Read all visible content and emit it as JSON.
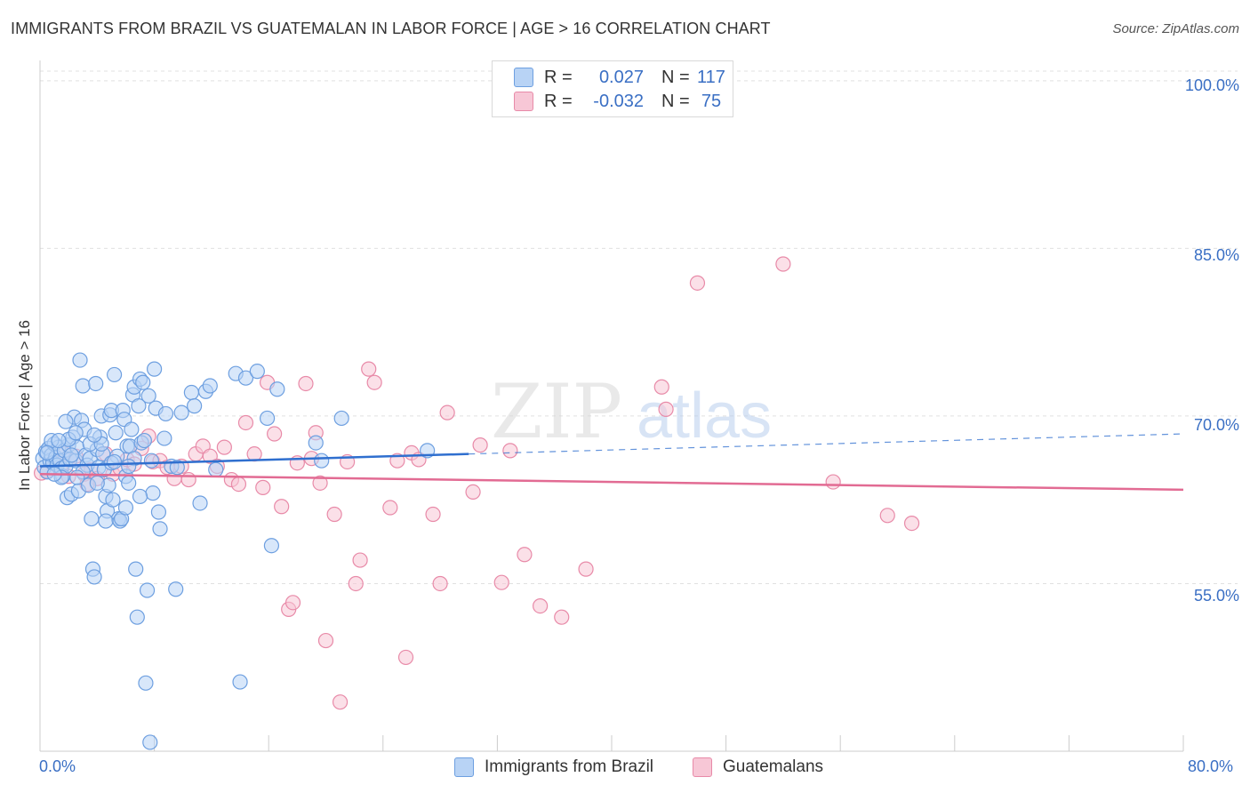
{
  "header": {
    "title": "IMMIGRANTS FROM BRAZIL VS GUATEMALAN IN LABOR FORCE | AGE > 16 CORRELATION CHART",
    "source": "Source: ZipAtlas.com"
  },
  "legend": {
    "series": [
      {
        "r_label": "R =",
        "r_value": "0.027",
        "n_label": "N =",
        "n_value": "117"
      },
      {
        "r_label": "R =",
        "r_value": "-0.032",
        "n_label": "N =",
        "n_value": "75"
      }
    ]
  },
  "watermark": {
    "part1": "ZIP",
    "part2": "atlas"
  },
  "chart_data": {
    "type": "scatter",
    "title": "IMMIGRANTS FROM BRAZIL VS GUATEMALAN IN LABOR FORCE | AGE > 16 CORRELATION CHART",
    "xlabel": "",
    "ylabel": "In Labor Force | Age > 16",
    "xlim": [
      0,
      80
    ],
    "ylim": [
      40,
      101.5
    ],
    "x_tick_labels": {
      "min": "0.0%",
      "max": "80.0%"
    },
    "y_ticks": [
      100,
      85,
      70,
      55
    ],
    "y_tick_labels": [
      "100.0%",
      "85.0%",
      "70.0%",
      "55.0%"
    ],
    "grid": true,
    "colors": {
      "brazil_fill": "#b8d3f5",
      "brazil_stroke": "#6d9fe0",
      "brazil_line": "#2f6fcf",
      "guat_fill": "#f7c7d6",
      "guat_stroke": "#e88aa8",
      "guat_line": "#e26b93",
      "axis_label": "#3a6fc4",
      "grid": "#e0e0e0"
    },
    "series": [
      {
        "name": "Immigrants from Brazil",
        "r": 0.027,
        "n": 117,
        "trend": {
          "x0": 0,
          "y0": 65.5,
          "x1": 30,
          "y1": 66.6,
          "dash_to_x": 80,
          "dash_to_y": 68.4
        },
        "points": [
          [
            0.2,
            66.2
          ],
          [
            0.3,
            65.4
          ],
          [
            0.4,
            66.8
          ],
          [
            0.5,
            65.0
          ],
          [
            0.6,
            67.1
          ],
          [
            0.7,
            66.0
          ],
          [
            0.8,
            66.5
          ],
          [
            0.9,
            65.8
          ],
          [
            1.0,
            67.5
          ],
          [
            1.1,
            66.3
          ],
          [
            1.2,
            65.6
          ],
          [
            1.3,
            67.2
          ],
          [
            1.4,
            66.0
          ],
          [
            1.5,
            65.3
          ],
          [
            1.6,
            64.6
          ],
          [
            1.7,
            66.9
          ],
          [
            1.8,
            65.5
          ],
          [
            1.9,
            62.7
          ],
          [
            2.0,
            67.4
          ],
          [
            2.1,
            66.1
          ],
          [
            2.2,
            63.0
          ],
          [
            2.3,
            68.1
          ],
          [
            2.4,
            69.9
          ],
          [
            2.5,
            66.0
          ],
          [
            2.6,
            67.2
          ],
          [
            2.7,
            63.3
          ],
          [
            2.8,
            75.0
          ],
          [
            2.9,
            69.6
          ],
          [
            3.0,
            72.7
          ],
          [
            3.1,
            68.8
          ],
          [
            3.2,
            66.5
          ],
          [
            3.3,
            65.6
          ],
          [
            3.4,
            63.8
          ],
          [
            3.5,
            66.2
          ],
          [
            3.6,
            60.8
          ],
          [
            3.7,
            56.3
          ],
          [
            3.8,
            55.6
          ],
          [
            3.9,
            72.9
          ],
          [
            4.0,
            67.0
          ],
          [
            4.1,
            65.4
          ],
          [
            4.2,
            68.1
          ],
          [
            4.3,
            70.0
          ],
          [
            4.4,
            66.6
          ],
          [
            4.5,
            65.2
          ],
          [
            4.6,
            62.8
          ],
          [
            4.7,
            61.5
          ],
          [
            4.8,
            63.8
          ],
          [
            4.9,
            70.1
          ],
          [
            5.0,
            70.5
          ],
          [
            5.1,
            62.5
          ],
          [
            5.2,
            73.7
          ],
          [
            5.3,
            68.5
          ],
          [
            5.4,
            66.4
          ],
          [
            5.5,
            60.8
          ],
          [
            5.6,
            60.6
          ],
          [
            5.7,
            60.8
          ],
          [
            5.8,
            70.5
          ],
          [
            5.9,
            69.7
          ],
          [
            6.0,
            64.6
          ],
          [
            6.1,
            67.3
          ],
          [
            6.2,
            64.0
          ],
          [
            6.3,
            67.3
          ],
          [
            6.4,
            68.8
          ],
          [
            6.5,
            71.9
          ],
          [
            6.6,
            72.6
          ],
          [
            6.7,
            56.3
          ],
          [
            6.8,
            52.0
          ],
          [
            6.9,
            70.9
          ],
          [
            7.0,
            73.3
          ],
          [
            7.1,
            67.6
          ],
          [
            7.2,
            73.0
          ],
          [
            7.3,
            67.8
          ],
          [
            7.4,
            46.1
          ],
          [
            7.5,
            54.4
          ],
          [
            7.6,
            71.8
          ],
          [
            7.7,
            40.8
          ],
          [
            7.8,
            66.0
          ],
          [
            7.9,
            63.1
          ],
          [
            8.0,
            74.2
          ],
          [
            8.1,
            70.7
          ],
          [
            8.3,
            61.4
          ],
          [
            8.4,
            59.9
          ],
          [
            8.8,
            70.2
          ],
          [
            9.2,
            65.5
          ],
          [
            9.5,
            54.5
          ],
          [
            9.6,
            65.4
          ],
          [
            9.9,
            70.3
          ],
          [
            10.6,
            72.1
          ],
          [
            10.8,
            70.9
          ],
          [
            11.2,
            62.2
          ],
          [
            11.6,
            72.2
          ],
          [
            11.9,
            72.7
          ],
          [
            12.3,
            65.2
          ],
          [
            13.7,
            73.8
          ],
          [
            14.0,
            46.2
          ],
          [
            14.4,
            73.4
          ],
          [
            15.2,
            74.0
          ],
          [
            15.9,
            69.8
          ],
          [
            16.2,
            58.4
          ],
          [
            16.6,
            72.4
          ],
          [
            19.3,
            67.6
          ],
          [
            19.7,
            66.0
          ],
          [
            21.1,
            69.8
          ],
          [
            27.1,
            66.9
          ],
          [
            2.0,
            67.9
          ],
          [
            1.5,
            64.5
          ],
          [
            3.0,
            65.0
          ],
          [
            4.0,
            64.0
          ],
          [
            0.8,
            67.8
          ],
          [
            1.0,
            64.8
          ],
          [
            2.5,
            68.5
          ],
          [
            3.5,
            67.5
          ],
          [
            6.0,
            61.8
          ],
          [
            7.0,
            62.8
          ],
          [
            5.0,
            65.8
          ],
          [
            2.2,
            66.5
          ],
          [
            1.3,
            67.8
          ],
          [
            0.5,
            66.7
          ],
          [
            4.3,
            67.5
          ],
          [
            3.8,
            68.3
          ],
          [
            1.8,
            69.5
          ],
          [
            2.6,
            64.5
          ],
          [
            6.6,
            66.2
          ],
          [
            5.2,
            65.9
          ],
          [
            8.7,
            68.0
          ],
          [
            4.6,
            60.6
          ],
          [
            6.2,
            65.5
          ]
        ]
      },
      {
        "name": "Guatemalans",
        "r": -0.032,
        "n": 75,
        "trend": {
          "x0": 0,
          "y0": 64.8,
          "x1": 80,
          "y1": 63.4
        },
        "points": [
          [
            0.1,
            64.9
          ],
          [
            0.5,
            65.1
          ],
          [
            1.0,
            65.8
          ],
          [
            1.4,
            65.3
          ],
          [
            2.0,
            64.6
          ],
          [
            2.5,
            66.4
          ],
          [
            3.1,
            64.8
          ],
          [
            3.6,
            65.2
          ],
          [
            4.0,
            64.4
          ],
          [
            4.6,
            66.6
          ],
          [
            5.1,
            64.8
          ],
          [
            5.6,
            65.3
          ],
          [
            6.1,
            66.1
          ],
          [
            6.6,
            65.7
          ],
          [
            7.1,
            67.1
          ],
          [
            7.6,
            68.2
          ],
          [
            7.9,
            65.9
          ],
          [
            8.4,
            66.0
          ],
          [
            8.9,
            65.4
          ],
          [
            9.4,
            64.4
          ],
          [
            9.9,
            65.5
          ],
          [
            10.4,
            64.3
          ],
          [
            10.9,
            66.6
          ],
          [
            11.4,
            67.3
          ],
          [
            11.9,
            66.4
          ],
          [
            12.4,
            65.5
          ],
          [
            12.9,
            67.2
          ],
          [
            13.4,
            64.3
          ],
          [
            13.9,
            63.9
          ],
          [
            14.4,
            69.4
          ],
          [
            15.0,
            66.6
          ],
          [
            15.6,
            63.6
          ],
          [
            15.9,
            73.0
          ],
          [
            16.4,
            68.4
          ],
          [
            16.9,
            61.9
          ],
          [
            17.4,
            52.7
          ],
          [
            17.7,
            53.3
          ],
          [
            18.0,
            65.8
          ],
          [
            18.6,
            72.9
          ],
          [
            19.0,
            66.2
          ],
          [
            19.3,
            68.5
          ],
          [
            19.6,
            64.0
          ],
          [
            20.0,
            49.9
          ],
          [
            20.6,
            61.2
          ],
          [
            21.0,
            44.4
          ],
          [
            21.5,
            65.9
          ],
          [
            22.1,
            55.0
          ],
          [
            22.4,
            57.1
          ],
          [
            23.0,
            74.2
          ],
          [
            23.4,
            73.0
          ],
          [
            24.5,
            61.8
          ],
          [
            25.0,
            66.0
          ],
          [
            25.6,
            48.4
          ],
          [
            26.0,
            66.7
          ],
          [
            26.5,
            66.1
          ],
          [
            27.5,
            61.2
          ],
          [
            28.0,
            55.0
          ],
          [
            28.5,
            70.3
          ],
          [
            30.3,
            63.2
          ],
          [
            30.8,
            67.4
          ],
          [
            32.3,
            55.1
          ],
          [
            32.9,
            66.9
          ],
          [
            33.9,
            57.6
          ],
          [
            35.0,
            53.0
          ],
          [
            36.5,
            52.0
          ],
          [
            38.2,
            56.3
          ],
          [
            43.5,
            72.6
          ],
          [
            43.8,
            70.6
          ],
          [
            46.0,
            81.9
          ],
          [
            52.0,
            83.6
          ],
          [
            55.5,
            64.1
          ],
          [
            59.3,
            61.1
          ],
          [
            61.0,
            60.4
          ],
          [
            1.7,
            66.6
          ],
          [
            3.3,
            63.9
          ]
        ]
      }
    ]
  },
  "bottom_legend": {
    "items": [
      {
        "label": "Immigrants from Brazil"
      },
      {
        "label": "Guatemalans"
      }
    ]
  }
}
